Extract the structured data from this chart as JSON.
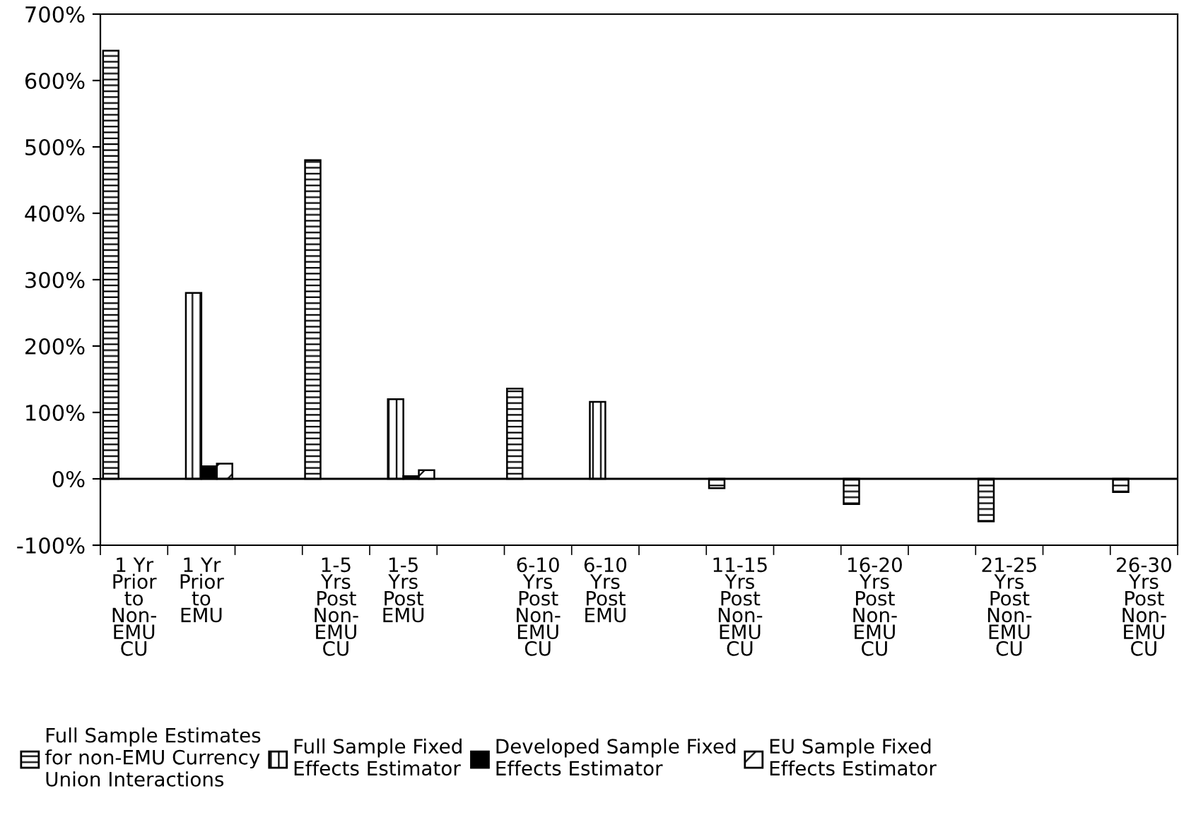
{
  "chart_data": {
    "type": "bar",
    "categories": [
      "1 Yr\nPrior\nto\nNon-\nEMU\nCU",
      "1 Yr\nPrior\nto\nEMU",
      null,
      "1-5\nYrs\nPost\nNon-\nEMU\nCU",
      "1-5\nYrs\nPost\nEMU",
      null,
      "6-10\nYrs\nPost\nNon-\nEMU\nCU",
      "6-10\nYrs\nPost\nEMU",
      null,
      "11-15\nYrs\nPost\nNon-\nEMU\nCU",
      null,
      "16-20\nYrs\nPost\nNon-\nEMU\nCU",
      null,
      "21-25\nYrs\nPost\nNon-\nEMU\nCU",
      null,
      "26-30\nYrs\nPost\nNon-\nEMU\nCU"
    ],
    "series": [
      {
        "name": "Full Sample Estimates\nfor non-EMU Currency\nUnion Interactions",
        "color": "#000000",
        "values": [
          645,
          null,
          null,
          480,
          null,
          null,
          136,
          null,
          null,
          -14,
          null,
          -38,
          null,
          -64,
          null,
          -20
        ]
      },
      {
        "name": "Full Sample Fixed\nEffects Estimator",
        "color": "#000000",
        "values": [
          null,
          280,
          null,
          null,
          120,
          null,
          null,
          116,
          null,
          null,
          null,
          null,
          null,
          null,
          null,
          null
        ]
      },
      {
        "name": "Developed Sample Fixed\nEffects Estimator",
        "color": "#000000",
        "values": [
          null,
          19,
          null,
          null,
          4,
          null,
          null,
          null,
          null,
          null,
          null,
          null,
          null,
          null,
          null,
          null
        ]
      },
      {
        "name": "EU Sample Fixed\nEffects Estimator",
        "color": "#000000",
        "values": [
          null,
          23,
          null,
          null,
          13,
          null,
          null,
          null,
          null,
          null,
          null,
          null,
          null,
          null,
          null,
          null
        ]
      }
    ],
    "ylim": [
      -100,
      700
    ],
    "yticks": [
      {
        "value": -100,
        "label": "-100%"
      },
      {
        "value": 0,
        "label": "0%"
      },
      {
        "value": 100,
        "label": "100%"
      },
      {
        "value": 200,
        "label": "200%"
      },
      {
        "value": 300,
        "label": "300%"
      },
      {
        "value": 400,
        "label": "400%"
      },
      {
        "value": 500,
        "label": "500%"
      },
      {
        "value": 600,
        "label": "600%"
      },
      {
        "value": 700,
        "label": "700%"
      }
    ],
    "grid": false,
    "ref_lines": [
      {
        "axis": "y",
        "value": 0
      }
    ],
    "legend": "bottom"
  }
}
